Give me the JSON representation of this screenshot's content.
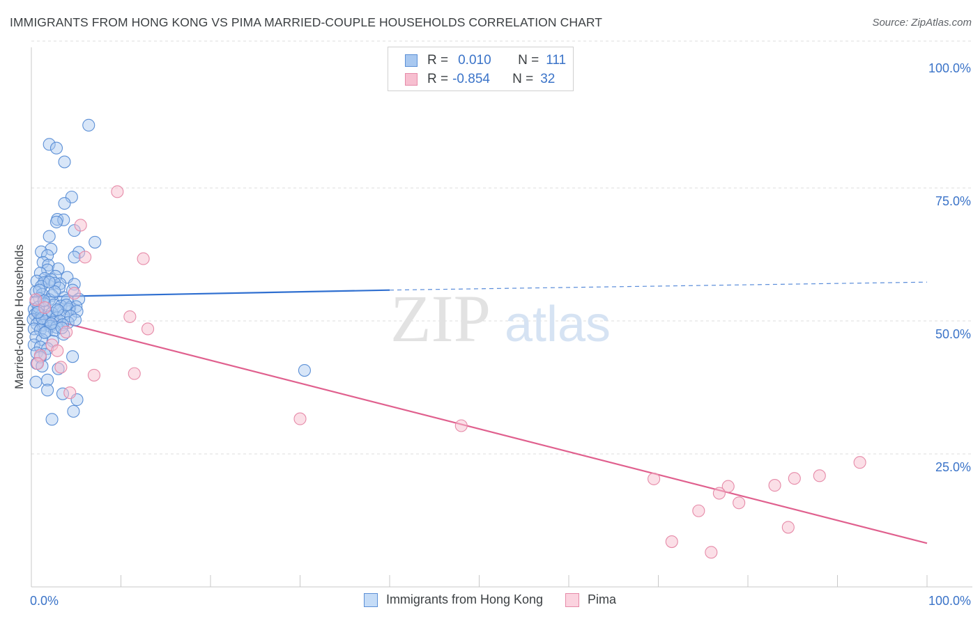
{
  "title": "IMMIGRANTS FROM HONG KONG VS PIMA MARRIED-COUPLE HOUSEHOLDS CORRELATION CHART",
  "source": "Source: ZipAtlas.com",
  "watermark": {
    "zip": "ZIP",
    "atlas": "atlas"
  },
  "legend": {
    "rows": [
      {
        "r_label": "R =",
        "r_value": "0.010",
        "n_label": "N =",
        "n_value": "111"
      },
      {
        "r_label": "R =",
        "r_value": "-0.854",
        "n_label": "N =",
        "n_value": "32"
      }
    ]
  },
  "colors": {
    "blue_fill": "#a8c8f0",
    "blue_stroke": "#5b8fd6",
    "blue_line": "#2f6fd0",
    "pink_fill": "#f7bfd0",
    "pink_stroke": "#e68aa8",
    "pink_line": "#e0608e",
    "value_text": "#3a73c8",
    "grid": "#dcdcdc"
  },
  "chart_data": {
    "type": "scatter",
    "title": "IMMIGRANTS FROM HONG KONG VS PIMA MARRIED-COUPLE HOUSEHOLDS CORRELATION CHART",
    "xlabel": "",
    "ylabel": "Married-couple Households",
    "xlim": [
      0,
      100
    ],
    "ylim": [
      0,
      100
    ],
    "x_tick_labels": [
      "0.0%",
      "100.0%"
    ],
    "y_tick_labels": [
      "100.0%",
      "75.0%",
      "50.0%",
      "25.0%"
    ],
    "y_ticks": [
      100,
      75,
      50,
      25
    ],
    "grid": true,
    "legend_position": "bottom",
    "series": [
      {
        "name": "Immigrants from Hong Kong",
        "color": "#a8c8f0",
        "trend": {
          "x": [
            0,
            40,
            100
          ],
          "y": [
            54.5,
            55.8,
            57.3
          ]
        },
        "points": [
          [
            6.4,
            86.8
          ],
          [
            2.0,
            83.2
          ],
          [
            2.8,
            82.5
          ],
          [
            3.7,
            79.9
          ],
          [
            4.5,
            73.3
          ],
          [
            3.7,
            72.1
          ],
          [
            2.9,
            69.1
          ],
          [
            3.6,
            69.0
          ],
          [
            2.8,
            68.6
          ],
          [
            4.8,
            67.0
          ],
          [
            7.1,
            64.8
          ],
          [
            2.0,
            65.9
          ],
          [
            2.2,
            63.5
          ],
          [
            1.1,
            63.0
          ],
          [
            5.3,
            62.9
          ],
          [
            1.8,
            62.3
          ],
          [
            4.8,
            62.0
          ],
          [
            1.3,
            61.0
          ],
          [
            1.9,
            60.5
          ],
          [
            1.8,
            59.6
          ],
          [
            3.0,
            59.8
          ],
          [
            1.0,
            59.0
          ],
          [
            2.7,
            58.4
          ],
          [
            4.0,
            58.2
          ],
          [
            1.5,
            58.0
          ],
          [
            2.2,
            57.8
          ],
          [
            0.6,
            57.5
          ],
          [
            1.4,
            57.2
          ],
          [
            3.2,
            57.0
          ],
          [
            2.6,
            57.1
          ],
          [
            4.8,
            56.9
          ],
          [
            1.1,
            56.5
          ],
          [
            3.1,
            56.2
          ],
          [
            4.6,
            55.8
          ],
          [
            0.5,
            55.5
          ],
          [
            1.2,
            55.0
          ],
          [
            2.3,
            54.8
          ],
          [
            3.6,
            54.4
          ],
          [
            0.9,
            54.2
          ],
          [
            2.0,
            54.0
          ],
          [
            4.0,
            53.9
          ],
          [
            5.3,
            54.1
          ],
          [
            0.5,
            53.5
          ],
          [
            1.5,
            53.2
          ],
          [
            2.5,
            53.0
          ],
          [
            3.3,
            52.8
          ],
          [
            4.3,
            52.5
          ],
          [
            5.0,
            52.7
          ],
          [
            0.3,
            52.2
          ],
          [
            0.8,
            52.0
          ],
          [
            1.6,
            51.8
          ],
          [
            2.3,
            51.5
          ],
          [
            3.1,
            51.9
          ],
          [
            4.2,
            52.2
          ],
          [
            5.1,
            51.8
          ],
          [
            0.4,
            51.2
          ],
          [
            1.1,
            51.0
          ],
          [
            2.0,
            50.8
          ],
          [
            2.8,
            50.6
          ],
          [
            3.6,
            51.1
          ],
          [
            4.4,
            50.9
          ],
          [
            0.2,
            50.3
          ],
          [
            0.9,
            50.1
          ],
          [
            1.6,
            49.9
          ],
          [
            2.4,
            49.8
          ],
          [
            3.2,
            50.0
          ],
          [
            4.1,
            49.7
          ],
          [
            4.9,
            50.2
          ],
          [
            0.6,
            49.4
          ],
          [
            1.3,
            49.2
          ],
          [
            2.1,
            49.0
          ],
          [
            2.8,
            48.8
          ],
          [
            3.5,
            49.3
          ],
          [
            0.3,
            48.5
          ],
          [
            1.0,
            48.3
          ],
          [
            1.7,
            48.0
          ],
          [
            2.6,
            48.2
          ],
          [
            3.6,
            47.5
          ],
          [
            0.5,
            47.0
          ],
          [
            1.2,
            46.5
          ],
          [
            2.4,
            46.2
          ],
          [
            0.3,
            45.5
          ],
          [
            1.0,
            45.1
          ],
          [
            1.8,
            44.8
          ],
          [
            0.6,
            44.0
          ],
          [
            1.5,
            43.7
          ],
          [
            1.0,
            43.2
          ],
          [
            4.6,
            43.3
          ],
          [
            0.6,
            42.0
          ],
          [
            1.2,
            41.5
          ],
          [
            3.0,
            41.0
          ],
          [
            1.8,
            38.9
          ],
          [
            0.5,
            38.5
          ],
          [
            1.8,
            37.0
          ],
          [
            3.5,
            36.3
          ],
          [
            5.1,
            35.2
          ],
          [
            4.7,
            33.0
          ],
          [
            2.3,
            31.5
          ],
          [
            30.5,
            40.7
          ],
          [
            0.8,
            52.6
          ],
          [
            1.4,
            53.8
          ],
          [
            2.6,
            55.5
          ],
          [
            3.9,
            53.0
          ],
          [
            1.2,
            50.5
          ],
          [
            2.9,
            52.1
          ],
          [
            0.7,
            51.6
          ],
          [
            2.2,
            49.5
          ],
          [
            3.4,
            48.7
          ],
          [
            1.5,
            47.8
          ],
          [
            0.9,
            55.8
          ],
          [
            2.0,
            57.3
          ]
        ]
      },
      {
        "name": "Pima",
        "color": "#f7bfd0",
        "trend": {
          "x": [
            0,
            100
          ],
          "y": [
            51.2,
            8.2
          ]
        },
        "points": [
          [
            9.6,
            74.3
          ],
          [
            5.5,
            68.0
          ],
          [
            6.0,
            62.0
          ],
          [
            12.5,
            61.7
          ],
          [
            4.8,
            55.2
          ],
          [
            1.5,
            52.5
          ],
          [
            11.0,
            50.8
          ],
          [
            13.0,
            48.5
          ],
          [
            3.9,
            47.9
          ],
          [
            2.3,
            45.5
          ],
          [
            2.9,
            44.4
          ],
          [
            1.0,
            43.5
          ],
          [
            0.7,
            42.0
          ],
          [
            3.3,
            41.3
          ],
          [
            7.0,
            39.8
          ],
          [
            11.5,
            40.1
          ],
          [
            4.3,
            36.5
          ],
          [
            30.0,
            31.6
          ],
          [
            48.0,
            30.3
          ],
          [
            69.5,
            20.3
          ],
          [
            77.8,
            18.9
          ],
          [
            76.8,
            17.6
          ],
          [
            79.0,
            15.8
          ],
          [
            74.5,
            14.3
          ],
          [
            85.2,
            20.4
          ],
          [
            88.0,
            20.9
          ],
          [
            92.5,
            23.4
          ],
          [
            83.0,
            19.1
          ],
          [
            84.5,
            11.2
          ],
          [
            71.5,
            8.5
          ],
          [
            75.9,
            6.5
          ],
          [
            0.5,
            54.0
          ]
        ]
      }
    ]
  }
}
